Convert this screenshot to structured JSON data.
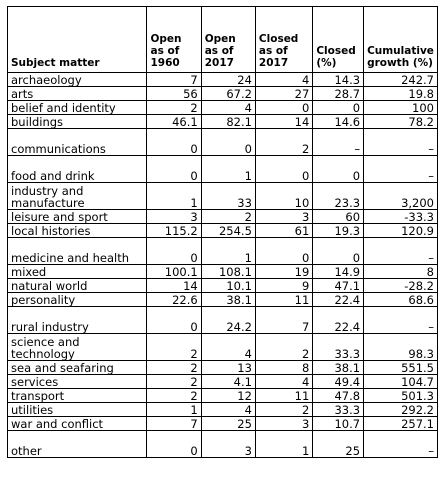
{
  "columns": [
    "Subject matter",
    "Open as of 1960",
    "Open as of 2017",
    "Closed as of 2017",
    "Closed (%)",
    "Cumulative growth (%)"
  ],
  "rows": [
    {
      "subject": "archaeology",
      "open1960": "7",
      "open2017": "24",
      "closed2017": "4",
      "closedPct": "14.3",
      "growth": "242.7",
      "tall": false
    },
    {
      "subject": "arts",
      "open1960": "56",
      "open2017": "67.2",
      "closed2017": "27",
      "closedPct": "28.7",
      "growth": "19.8",
      "tall": false
    },
    {
      "subject": "belief and identity",
      "open1960": "2",
      "open2017": "4",
      "closed2017": "0",
      "closedPct": "0",
      "growth": "100",
      "tall": false
    },
    {
      "subject": "buildings",
      "open1960": "46.1",
      "open2017": "82.1",
      "closed2017": "14",
      "closedPct": "14.6",
      "growth": "78.2",
      "tall": false
    },
    {
      "subject": "communications",
      "open1960": "0",
      "open2017": "0",
      "closed2017": "2",
      "closedPct": "–",
      "growth": "–",
      "tall": true
    },
    {
      "subject": "food and drink",
      "open1960": "0",
      "open2017": "1",
      "closed2017": "0",
      "closedPct": "0",
      "growth": "–",
      "tall": true
    },
    {
      "subject": "industry and manufacture",
      "open1960": "1",
      "open2017": "33",
      "closed2017": "10",
      "closedPct": "23.3",
      "growth": "3,200",
      "tall": true
    },
    {
      "subject": "leisure and sport",
      "open1960": "3",
      "open2017": "2",
      "closed2017": "3",
      "closedPct": "60",
      "growth": "-33.3",
      "tall": false
    },
    {
      "subject": "local histories",
      "open1960": "115.2",
      "open2017": "254.5",
      "closed2017": "61",
      "closedPct": "19.3",
      "growth": "120.9",
      "tall": false
    },
    {
      "subject": "medicine and health",
      "open1960": "0",
      "open2017": "1",
      "closed2017": "0",
      "closedPct": "0",
      "growth": "–",
      "tall": true
    },
    {
      "subject": "mixed",
      "open1960": "100.1",
      "open2017": "108.1",
      "closed2017": "19",
      "closedPct": "14.9",
      "growth": "8",
      "tall": false
    },
    {
      "subject": "natural world",
      "open1960": "14",
      "open2017": "10.1",
      "closed2017": "9",
      "closedPct": "47.1",
      "growth": "-28.2",
      "tall": false
    },
    {
      "subject": "personality",
      "open1960": "22.6",
      "open2017": "38.1",
      "closed2017": "11",
      "closedPct": "22.4",
      "growth": "68.6",
      "tall": false
    },
    {
      "subject": "rural industry",
      "open1960": "0",
      "open2017": "24.2",
      "closed2017": "7",
      "closedPct": "22.4",
      "growth": "–",
      "tall": true
    },
    {
      "subject": "science and technology",
      "open1960": "2",
      "open2017": "4",
      "closed2017": "2",
      "closedPct": "33.3",
      "growth": "98.3",
      "tall": true
    },
    {
      "subject": "sea and seafaring",
      "open1960": "2",
      "open2017": "13",
      "closed2017": "8",
      "closedPct": "38.1",
      "growth": "551.5",
      "tall": false
    },
    {
      "subject": "services",
      "open1960": "2",
      "open2017": "4.1",
      "closed2017": "4",
      "closedPct": "49.4",
      "growth": "104.7",
      "tall": false
    },
    {
      "subject": "transport",
      "open1960": "2",
      "open2017": "12",
      "closed2017": "11",
      "closedPct": "47.8",
      "growth": "501.3",
      "tall": false
    },
    {
      "subject": "utilities",
      "open1960": "1",
      "open2017": "4",
      "closed2017": "2",
      "closedPct": "33.3",
      "growth": "292.2",
      "tall": false
    },
    {
      "subject": "war and conflict",
      "open1960": "7",
      "open2017": "25",
      "closed2017": "3",
      "closedPct": "10.7",
      "growth": "257.1",
      "tall": false
    },
    {
      "subject": "other",
      "open1960": "0",
      "open2017": "3",
      "closed2017": "1",
      "closedPct": "25",
      "growth": "–",
      "tall": true
    }
  ]
}
